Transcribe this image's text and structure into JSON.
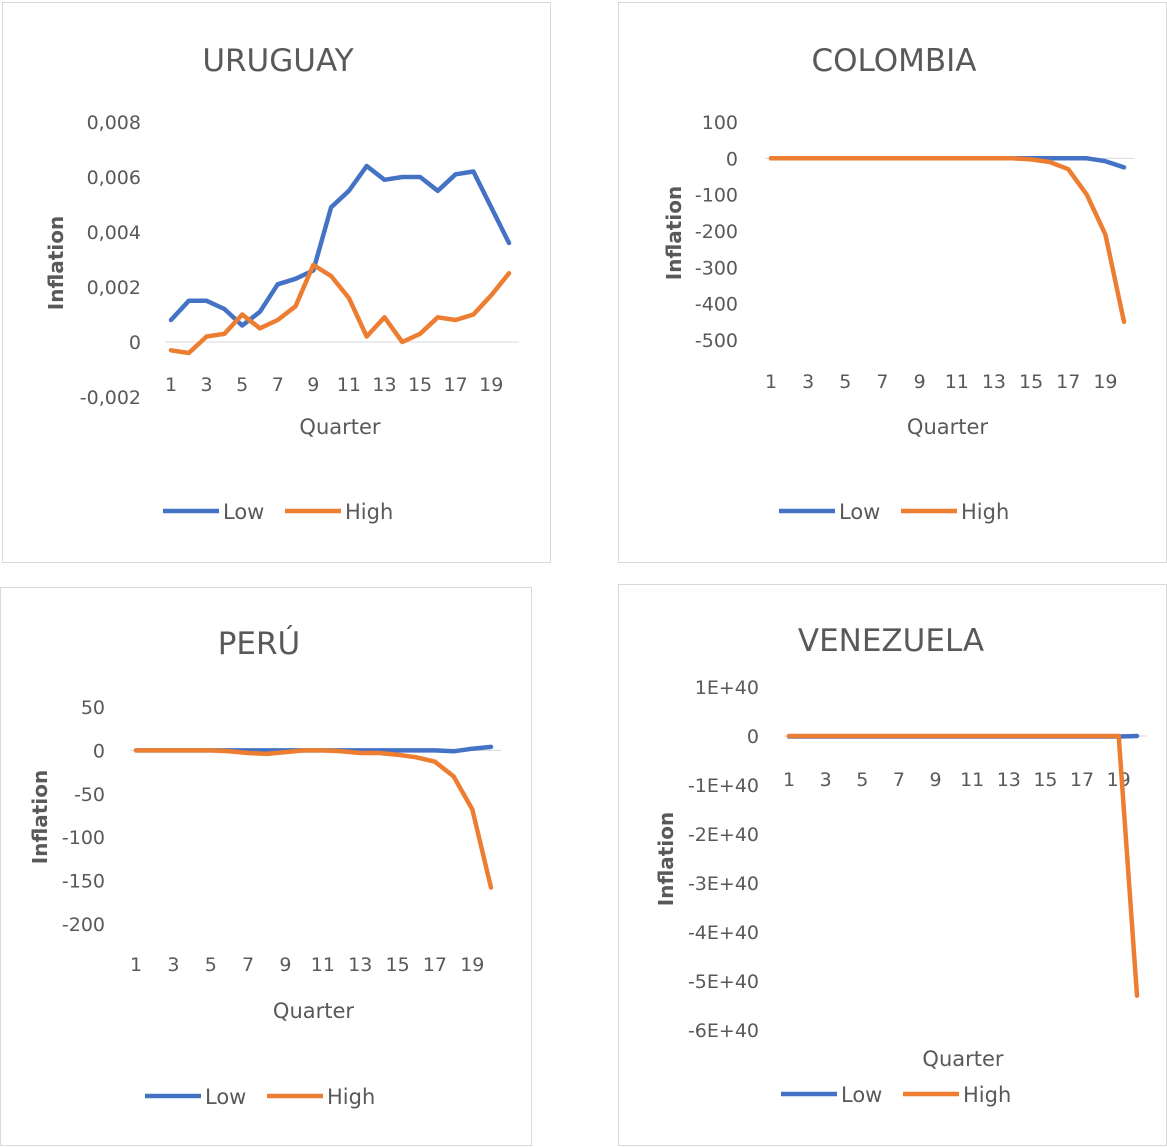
{
  "chart_data": [
    {
      "type": "line",
      "title": "URUGUAY",
      "xlabel": "Quarter",
      "ylabel": "Inflation",
      "x": [
        1,
        2,
        3,
        4,
        5,
        6,
        7,
        8,
        9,
        10,
        11,
        12,
        13,
        14,
        15,
        16,
        17,
        18,
        19,
        20
      ],
      "x_tick_labels": [
        "1",
        "3",
        "5",
        "7",
        "9",
        "11",
        "13",
        "15",
        "17",
        "19"
      ],
      "y_tick_labels": [
        "0,008",
        "0,006",
        "0,004",
        "0,002",
        "0",
        "-0,002"
      ],
      "ylim": [
        -0.002,
        0.008
      ],
      "series": [
        {
          "name": "Low",
          "color": "#4472c4",
          "values": [
            0.0008,
            0.0015,
            0.0015,
            0.0012,
            0.0006,
            0.0011,
            0.0021,
            0.0023,
            0.0026,
            0.0049,
            0.0055,
            0.0064,
            0.0059,
            0.006,
            0.006,
            0.0055,
            0.0061,
            0.0062,
            0.0049,
            0.0036
          ]
        },
        {
          "name": "High",
          "color": "#ed7d31",
          "values": [
            -0.0003,
            -0.0004,
            0.0002,
            0.0003,
            0.001,
            0.0005,
            0.0008,
            0.0013,
            0.0028,
            0.0024,
            0.0016,
            0.0002,
            0.0009,
            0.0,
            0.0003,
            0.0009,
            0.0008,
            0.001,
            0.0017,
            0.0025
          ]
        }
      ],
      "legend": "bottom"
    },
    {
      "type": "line",
      "title": "COLOMBIA",
      "xlabel": "Quarter",
      "ylabel": "Inflation",
      "x": [
        1,
        2,
        3,
        4,
        5,
        6,
        7,
        8,
        9,
        10,
        11,
        12,
        13,
        14,
        15,
        16,
        17,
        18,
        19,
        20
      ],
      "x_tick_labels": [
        "1",
        "3",
        "5",
        "7",
        "9",
        "11",
        "13",
        "15",
        "17",
        "19"
      ],
      "y_tick_labels": [
        "100",
        "0",
        "-100",
        "-200",
        "-300",
        "-400",
        "-500"
      ],
      "ylim": [
        -500,
        100
      ],
      "series": [
        {
          "name": "Low",
          "color": "#4472c4",
          "values": [
            0,
            0,
            0,
            0,
            0,
            0,
            0,
            0,
            0,
            0,
            0,
            0,
            0,
            0,
            0,
            0,
            0,
            0,
            -8,
            -25
          ]
        },
        {
          "name": "High",
          "color": "#ed7d31",
          "values": [
            0,
            0,
            0,
            0,
            0,
            0,
            0,
            0,
            0,
            0,
            0,
            0,
            0,
            0,
            -3,
            -10,
            -30,
            -100,
            -210,
            -450
          ]
        }
      ],
      "legend": "bottom"
    },
    {
      "type": "line",
      "title": "PERÚ",
      "xlabel": "Quarter",
      "ylabel": "Inflation",
      "x": [
        1,
        2,
        3,
        4,
        5,
        6,
        7,
        8,
        9,
        10,
        11,
        12,
        13,
        14,
        15,
        16,
        17,
        18,
        19,
        20
      ],
      "x_tick_labels": [
        "1",
        "3",
        "5",
        "7",
        "9",
        "11",
        "13",
        "15",
        "17",
        "19"
      ],
      "y_tick_labels": [
        "50",
        "0",
        "-50",
        "-100",
        "-150",
        "-200"
      ],
      "ylim": [
        -200,
        50
      ],
      "series": [
        {
          "name": "Low",
          "color": "#4472c4",
          "values": [
            0,
            0,
            0,
            0,
            0,
            0,
            0,
            0,
            0,
            0,
            0,
            0,
            0,
            0,
            0,
            0,
            0,
            -1,
            2,
            4
          ]
        },
        {
          "name": "High",
          "color": "#ed7d31",
          "values": [
            0,
            0,
            0,
            0,
            0,
            -1,
            -3,
            -4,
            -2,
            0,
            0,
            -1,
            -3,
            -3,
            -5,
            -8,
            -13,
            -30,
            -68,
            -158
          ]
        }
      ],
      "legend": "bottom"
    },
    {
      "type": "line",
      "title": "VENEZUELA",
      "xlabel": "Quarter",
      "ylabel": "Inflation",
      "x": [
        1,
        2,
        3,
        4,
        5,
        6,
        7,
        8,
        9,
        10,
        11,
        12,
        13,
        14,
        15,
        16,
        17,
        18,
        19,
        20
      ],
      "x_tick_labels": [
        "1",
        "3",
        "5",
        "7",
        "9",
        "11",
        "13",
        "15",
        "17",
        "19"
      ],
      "y_tick_labels": [
        "1E+40",
        "0",
        "-1E+40",
        "-2E+40",
        "-3E+40",
        "-4E+40",
        "-5E+40",
        "-6E+40"
      ],
      "ylim": [
        -6e+40,
        1e+40
      ],
      "series": [
        {
          "name": "Low",
          "color": "#4472c4",
          "values": [
            -1e+38,
            -1e+38,
            -1e+38,
            -1e+38,
            -1e+38,
            -1e+38,
            -1e+38,
            -1e+38,
            -1e+38,
            -1e+38,
            -1e+38,
            -1e+38,
            -1e+38,
            -1e+38,
            -1e+38,
            -1e+38,
            -1e+38,
            -1e+38,
            -1e+38,
            0
          ]
        },
        {
          "name": "High",
          "color": "#ed7d31",
          "values": [
            0,
            0,
            0,
            0,
            0,
            0,
            0,
            0,
            0,
            0,
            0,
            0,
            0,
            0,
            0,
            0,
            0,
            0,
            0,
            -5.3e+40
          ]
        }
      ],
      "legend": "bottom"
    }
  ]
}
